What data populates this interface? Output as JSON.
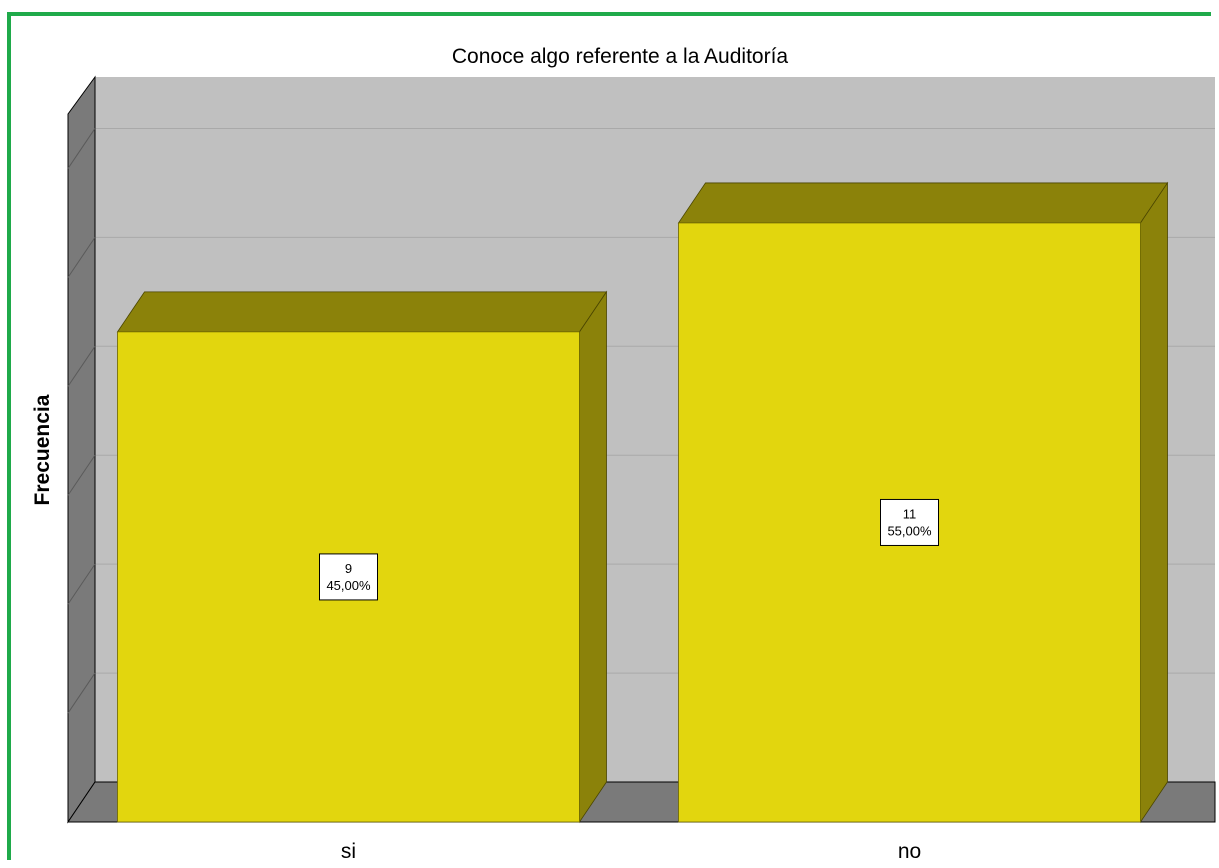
{
  "chart_data": {
    "type": "bar",
    "title": "Conoce algo referente a la Auditoría",
    "xlabel": "",
    "ylabel": "Frecuencia",
    "categories": [
      "si",
      "no"
    ],
    "values": [
      9,
      11
    ],
    "percent_labels": [
      "45,00%",
      "55,00%"
    ],
    "count_labels": [
      "9",
      "11"
    ],
    "ylim": [
      0,
      13
    ],
    "grid": true,
    "style": "3d",
    "colors": {
      "bar_front": "#e2d60e",
      "bar_side": "#8b820a",
      "plot_background": "#c0c0c0",
      "wall_left": "#7a7a7a",
      "floor": "#7a7a7a",
      "frame_border": "#1faa4a"
    }
  }
}
